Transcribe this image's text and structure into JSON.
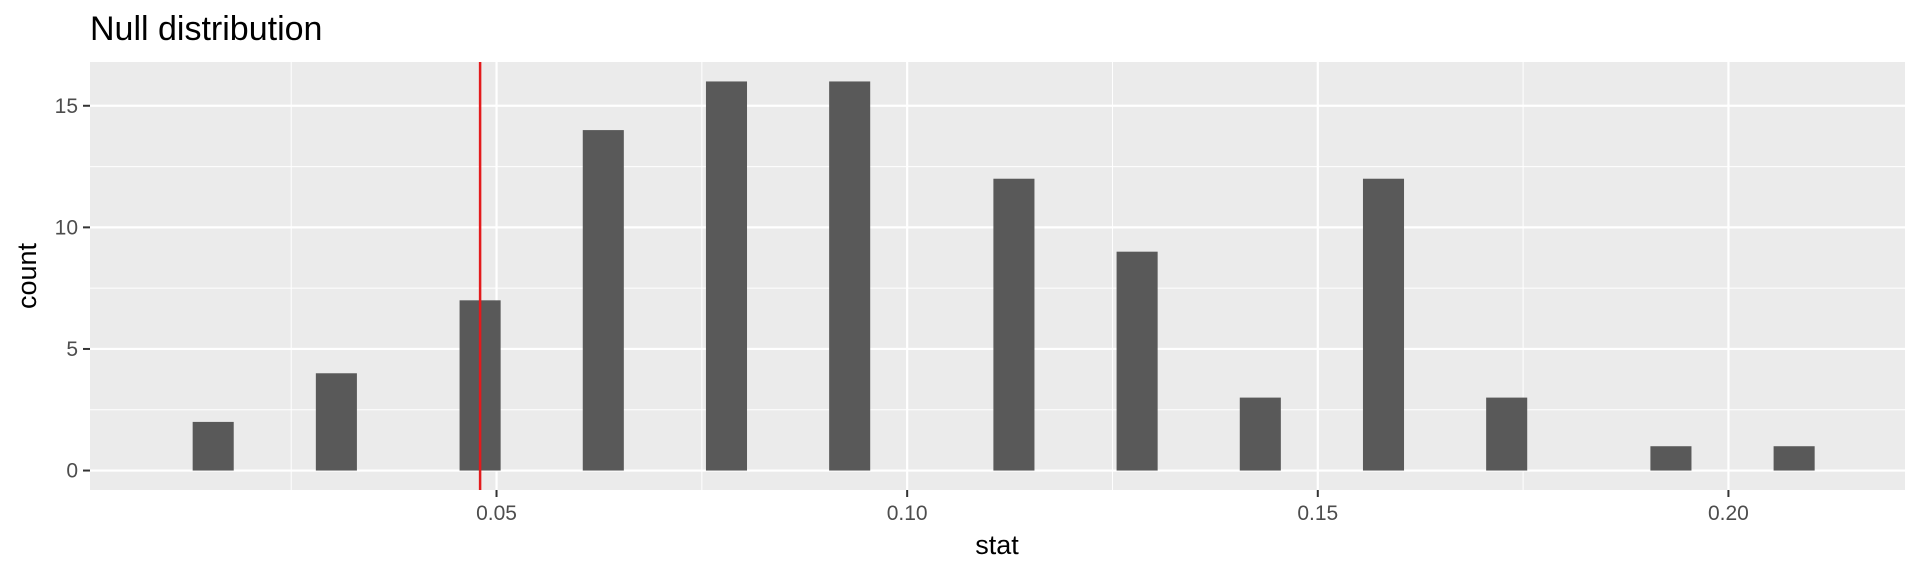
{
  "chart_data": {
    "type": "bar",
    "title": "Null distribution",
    "xlabel": "stat",
    "ylabel": "count",
    "x": [
      0.0155,
      0.0305,
      0.048,
      0.063,
      0.078,
      0.093,
      0.113,
      0.128,
      0.143,
      0.158,
      0.173,
      0.193,
      0.208
    ],
    "values": [
      2,
      4,
      7,
      14,
      16,
      16,
      12,
      9,
      3,
      12,
      3,
      1,
      1
    ],
    "bar_width": 0.005,
    "xlim": [
      0.0005,
      0.2215
    ],
    "ylim": [
      -0.8,
      16.8
    ],
    "xticks": [
      0.05,
      0.1,
      0.15,
      0.2
    ],
    "xtick_labels": [
      "0.05",
      "0.10",
      "0.15",
      "0.20"
    ],
    "yticks": [
      0,
      5,
      10,
      15
    ],
    "ytick_labels": [
      "0",
      "5",
      "10",
      "15"
    ],
    "reference_line": {
      "x": 0.048,
      "color": "#e31a1c"
    },
    "panel_background": "#ebebeb",
    "grid_color": "#ffffff",
    "bar_color": "#595959",
    "grid": true
  }
}
